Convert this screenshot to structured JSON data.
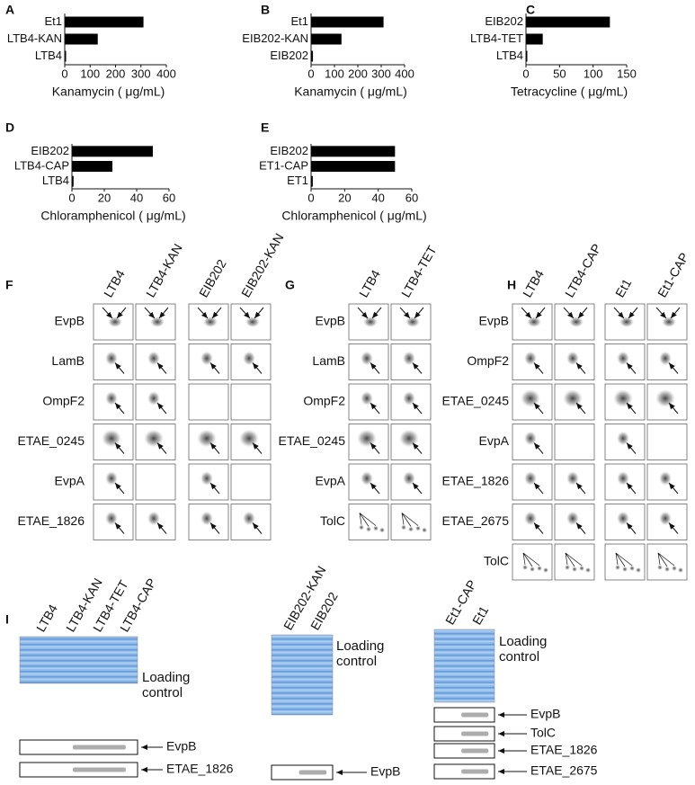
{
  "chart_data": [
    {
      "type": "bar",
      "orientation": "horizontal",
      "label": "A",
      "categories": [
        "Et1",
        "LTB4-KAN",
        "LTB4"
      ],
      "values": [
        310,
        130,
        2
      ],
      "color": "#000000",
      "xlabel": "Kanamycin ( μg/mL)",
      "xlim": [
        0,
        400
      ],
      "xticks": [
        0,
        100,
        200,
        300,
        400
      ]
    },
    {
      "type": "bar",
      "orientation": "horizontal",
      "label": "B",
      "categories": [
        "Et1",
        "EIB202-KAN",
        "EIB202"
      ],
      "values": [
        310,
        130,
        8
      ],
      "color": "#000000",
      "xlabel": "Kanamycin ( μg/mL)",
      "xlim": [
        0,
        400
      ],
      "xticks": [
        0,
        100,
        200,
        300,
        400
      ]
    },
    {
      "type": "bar",
      "orientation": "horizontal",
      "label": "C",
      "categories": [
        "EIB202",
        "LTB4-TET",
        "LTB4"
      ],
      "values": [
        125,
        25,
        1
      ],
      "color": "#000000",
      "xlabel": "Tetracycline ( μg/mL)",
      "xlim": [
        0,
        150
      ],
      "xticks": [
        0,
        50,
        100,
        150
      ]
    },
    {
      "type": "bar",
      "orientation": "horizontal",
      "label": "D",
      "categories": [
        "EIB202",
        "LTB4-CAP",
        "LTB4"
      ],
      "values": [
        50,
        25,
        1
      ],
      "color": "#000000",
      "xlabel": "Chloramphenicol ( μg/mL)",
      "xlim": [
        0,
        60
      ],
      "xticks": [
        0,
        20,
        40,
        60
      ]
    },
    {
      "type": "bar",
      "orientation": "horizontal",
      "label": "E",
      "categories": [
        "EIB202",
        "ET1-CAP",
        "ET1"
      ],
      "values": [
        50,
        50,
        1
      ],
      "color": "#000000",
      "xlabel": "Chloramphenicol ( μg/mL)",
      "xlim": [
        0,
        60
      ],
      "xticks": [
        0,
        20,
        40,
        60
      ]
    }
  ],
  "gels": [
    {
      "label": "F",
      "lanes": [
        "LTB4",
        "LTB4-KAN",
        "EIB202",
        "EIB202-KAN"
      ],
      "rows": [
        "EvpB",
        "LamB",
        "OmpF2",
        "ETAE_0245",
        "EvpA",
        "ETAE_1826"
      ]
    },
    {
      "label": "G",
      "lanes": [
        "LTB4",
        "LTB4-TET"
      ],
      "rows": [
        "EvpB",
        "LamB",
        "OmpF2",
        "ETAE_0245",
        "EvpA",
        "TolC"
      ]
    },
    {
      "label": "H",
      "lanes": [
        "LTB4",
        "LTB4-CAP",
        "Et1",
        "Et1-CAP"
      ],
      "rows": [
        "EvpB",
        "OmpF2",
        "ETAE_0245",
        "EvpA",
        "ETAE_1826",
        "ETAE_2675",
        "TolC"
      ]
    }
  ],
  "blots": {
    "label": "I",
    "groups": [
      {
        "lanes": [
          "LTB4",
          "LTB4-KAN",
          "LTB4-TET",
          "LTB4-CAP"
        ],
        "loading": "Loading control",
        "bands": [
          "EvpB",
          "ETAE_1826"
        ]
      },
      {
        "lanes": [
          "EIB202-KAN",
          "EIB202"
        ],
        "loading": "Loading control",
        "bands": [
          "EvpB"
        ]
      },
      {
        "lanes": [
          "Et1-CAP",
          "Et1"
        ],
        "loading": "Loading control",
        "bands": [
          "EvpB",
          "TolC",
          "ETAE_1826",
          "ETAE_2675"
        ]
      }
    ]
  }
}
